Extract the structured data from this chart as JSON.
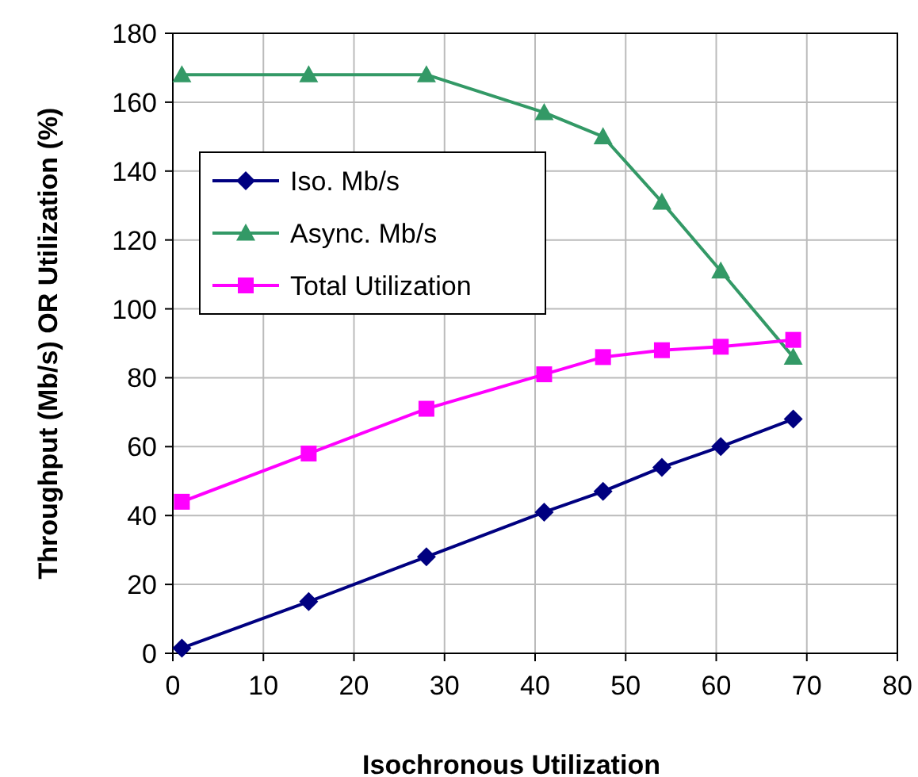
{
  "chart_data": {
    "type": "line",
    "xlabel": "Isochronous Utilization",
    "ylabel": "Throughput (Mb/s) OR Utilization (%)",
    "xlim": [
      0,
      80
    ],
    "xticks": [
      0,
      10,
      20,
      30,
      40,
      50,
      60,
      70,
      80
    ],
    "ylim": [
      0,
      180
    ],
    "yticks": [
      0,
      20,
      40,
      60,
      80,
      100,
      120,
      140,
      160,
      180
    ],
    "x": [
      1,
      15,
      28,
      41,
      47.5,
      54,
      60.5,
      68.5
    ],
    "grid": true,
    "legend": "left",
    "line_style": "solid",
    "series": [
      {
        "name": "Iso. Mb/s",
        "color": "#000080",
        "marker": "diamond",
        "values": [
          1.5,
          15,
          28,
          41,
          47,
          54,
          60,
          68
        ]
      },
      {
        "name": "Async. Mb/s",
        "color": "#339966",
        "marker": "triangle",
        "values": [
          168,
          168,
          168,
          157,
          150,
          131,
          111,
          86
        ]
      },
      {
        "name": "Total Utilization",
        "color": "#ff00ff",
        "marker": "square",
        "values": [
          44,
          58,
          71,
          81,
          86,
          88,
          89,
          91
        ]
      }
    ]
  }
}
